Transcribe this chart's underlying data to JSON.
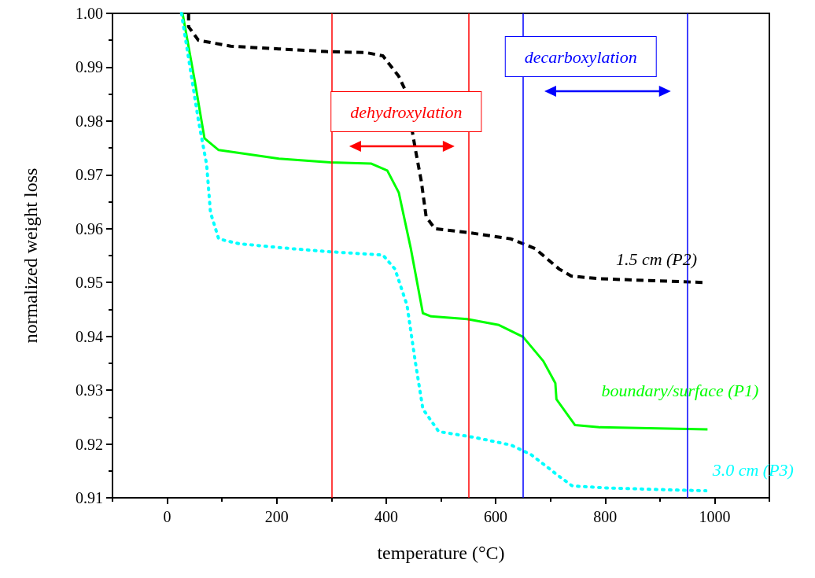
{
  "chart_data": {
    "type": "line",
    "xlabel": "temperature (°C)",
    "ylabel": "normalized weight loss",
    "xlim": [
      -100,
      1100
    ],
    "xticks": [
      0,
      200,
      400,
      600,
      800,
      1000
    ],
    "ylim": [
      0.91,
      1.0
    ],
    "yticks": [
      0.91,
      0.92,
      0.93,
      0.94,
      0.95,
      0.96,
      0.97,
      0.98,
      0.99,
      {
        "value": 1.0,
        "label": "1.00"
      }
    ],
    "grid": false,
    "legend": false,
    "series": [
      {
        "name": "1.5 cm (P2)",
        "color": "#000000",
        "line_style": "dashed",
        "x": [
          39,
          39,
          57,
          116,
          204,
          291,
          364,
          394,
          423,
          435,
          453,
          464,
          473,
          489,
          555,
          628,
          672,
          716,
          738,
          789,
          980
        ],
        "values": [
          1.0,
          0.9975,
          0.995,
          0.9939,
          0.9934,
          0.9929,
          0.9927,
          0.9921,
          0.9883,
          0.9857,
          0.9749,
          0.9689,
          0.9622,
          0.96,
          0.9592,
          0.9581,
          0.9563,
          0.9525,
          0.9512,
          0.9507,
          0.95
        ]
      },
      {
        "name": "boundary/surface (P1)",
        "color": "#00ff00",
        "line_style": "solid",
        "x": [
          28,
          50,
          68,
          94,
          204,
          298,
          372,
          402,
          423,
          445,
          467,
          482,
          548,
          606,
          650,
          687,
          709,
          711,
          745,
          789,
          987
        ],
        "values": [
          1.0,
          0.9876,
          0.9768,
          0.9746,
          0.973,
          0.9723,
          0.9721,
          0.9708,
          0.9667,
          0.9563,
          0.9443,
          0.9437,
          0.9432,
          0.9421,
          0.9399,
          0.9354,
          0.9313,
          0.9283,
          0.9235,
          0.9231,
          0.9227
        ]
      },
      {
        "name": "3.0 cm (P3)",
        "color": "#00ffff",
        "line_style": "dotted",
        "x": [
          26,
          57,
          72,
          79,
          94,
          131,
          225,
          298,
          394,
          416,
          438,
          453,
          467,
          496,
          562,
          628,
          665,
          697,
          713,
          740,
          808,
          912,
          984
        ],
        "values": [
          1.0,
          0.9801,
          0.9719,
          0.963,
          0.9581,
          0.9572,
          0.9563,
          0.9557,
          0.9551,
          0.9525,
          0.9458,
          0.9354,
          0.9265,
          0.9223,
          0.9212,
          0.9198,
          0.918,
          0.9155,
          0.9142,
          0.9122,
          0.9118,
          0.9115,
          0.9113
        ]
      }
    ],
    "ref_lines": [
      {
        "axis": "x",
        "value": 300,
        "color": "#ff0000"
      },
      {
        "axis": "x",
        "value": 550,
        "color": "#ff0000"
      },
      {
        "axis": "x",
        "value": 650,
        "color": "#0000ff"
      },
      {
        "axis": "x",
        "value": 950,
        "color": "#0000ff"
      }
    ],
    "annotations": [
      "dehydroxylation",
      "decarboxylation"
    ]
  }
}
